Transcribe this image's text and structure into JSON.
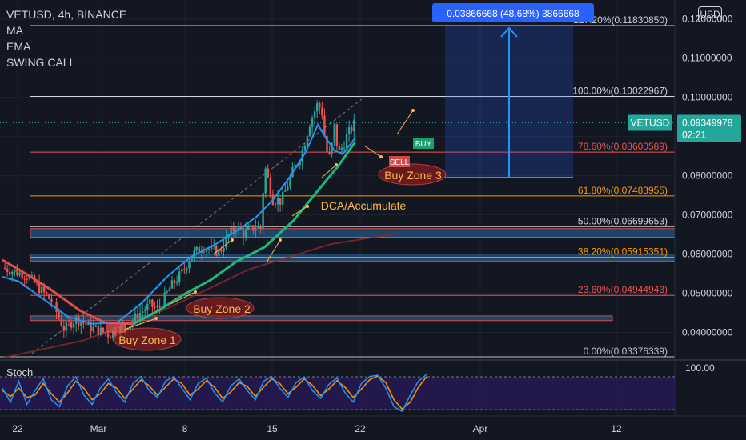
{
  "header": {
    "title": "VETUSD, 4h, BINANCE",
    "indicators": [
      "MA",
      "EMA",
      "SWING CALL"
    ],
    "currency_button": "USD"
  },
  "measure_label": "0.03866668 (48.68%) 3866668",
  "price_tag": {
    "symbol": "VETUSD",
    "price": "0.09349978",
    "countdown": "02:21",
    "color": "#26a69a"
  },
  "chart_data": {
    "type": "candlestick",
    "title": "VETUSD, 4h, BINANCE",
    "y_ticks": [
      "0.04000000",
      "0.05000000",
      "0.06000000",
      "0.07000000",
      "0.08000000",
      "0.09000000",
      "0.10000000",
      "0.11000000",
      "0.12000000"
    ],
    "ylim": [
      0.032,
      0.125
    ],
    "x_ticks": [
      "22",
      "Mar",
      "8",
      "15",
      "22",
      "Apr",
      "12"
    ],
    "close_path": [
      [
        0,
        0.0565
      ],
      [
        6,
        0.0545
      ],
      [
        12,
        0.048
      ],
      [
        15,
        0.041
      ],
      [
        18,
        0.0435
      ],
      [
        22,
        0.041
      ],
      [
        26,
        0.0395
      ],
      [
        28,
        0.0405
      ],
      [
        31,
        0.042
      ],
      [
        33,
        0.0445
      ],
      [
        36,
        0.047
      ],
      [
        38,
        0.0458
      ],
      [
        41,
        0.0515
      ],
      [
        44,
        0.0555
      ],
      [
        46,
        0.0595
      ],
      [
        49,
        0.062
      ],
      [
        51,
        0.061
      ],
      [
        53,
        0.0605
      ],
      [
        55,
        0.0645
      ],
      [
        57,
        0.067
      ],
      [
        59,
        0.0652
      ],
      [
        62,
        0.0672
      ],
      [
        63,
        0.0665
      ],
      [
        64,
        0.0825
      ],
      [
        66,
        0.074
      ],
      [
        68,
        0.0735
      ],
      [
        69,
        0.076
      ],
      [
        71,
        0.0815
      ],
      [
        73,
        0.0855
      ],
      [
        75,
        0.0935
      ],
      [
        77,
        0.0985
      ],
      [
        78,
        0.096
      ],
      [
        79,
        0.0865
      ],
      [
        80,
        0.0845
      ],
      [
        81,
        0.0925
      ],
      [
        82,
        0.0855
      ],
      [
        83,
        0.0875
      ],
      [
        84,
        0.09
      ],
      [
        86,
        0.0935
      ]
    ],
    "ma_path": [
      [
        0,
        0.0585
      ],
      [
        6,
        0.0548
      ],
      [
        12,
        0.0508
      ],
      [
        19,
        0.0455
      ],
      [
        25,
        0.0425
      ],
      [
        32,
        0.0422
      ],
      [
        38,
        0.0455
      ],
      [
        44,
        0.0495
      ],
      [
        51,
        0.0535
      ],
      [
        57,
        0.058
      ],
      [
        64,
        0.0618
      ],
      [
        71,
        0.0685
      ],
      [
        78,
        0.0775
      ],
      [
        82,
        0.0825
      ],
      [
        86,
        0.0885
      ]
    ],
    "ema_path": [
      [
        0,
        0.0542
      ],
      [
        4,
        0.053
      ],
      [
        10,
        0.0485
      ],
      [
        16,
        0.044
      ],
      [
        22,
        0.0422
      ],
      [
        28,
        0.0425
      ],
      [
        34,
        0.0475
      ],
      [
        40,
        0.054
      ],
      [
        46,
        0.0593
      ],
      [
        52,
        0.0625
      ],
      [
        58,
        0.0665
      ],
      [
        62,
        0.0695
      ],
      [
        66,
        0.0738
      ],
      [
        70,
        0.0795
      ],
      [
        74,
        0.086
      ],
      [
        77,
        0.093
      ],
      [
        79,
        0.0895
      ],
      [
        81,
        0.0865
      ],
      [
        83,
        0.0855
      ],
      [
        86,
        0.0895
      ]
    ],
    "slow_ma_path": [
      [
        0,
        0.0335
      ],
      [
        20,
        0.038
      ],
      [
        40,
        0.046
      ],
      [
        60,
        0.056
      ],
      [
        80,
        0.0625
      ],
      [
        96,
        0.0652
      ]
    ],
    "fib_levels": [
      {
        "label": "0.00%(0.03376339)",
        "price": 0.03376339,
        "color": "#c2c2c2"
      },
      {
        "label": "23.60%(0.04944943)",
        "price": 0.04944943,
        "color": "#ef5350"
      },
      {
        "label": "38.20%(0.05915351)",
        "price": 0.05915351,
        "color": "#ff9800"
      },
      {
        "label": "50.00%(0.06699653)",
        "price": 0.06699653,
        "color": "#d1d4dc"
      },
      {
        "label": "61.80%(0.07483955)",
        "price": 0.07483955,
        "color": "#ff9800"
      },
      {
        "label": "78.60%(0.08600589)",
        "price": 0.08600589,
        "color": "#ef5350"
      },
      {
        "label": "100.00%(0.10022967)",
        "price": 0.10022967,
        "color": "#d1d4dc"
      },
      {
        "label": "127.20%(0.11830850)",
        "price": 0.1183085,
        "color": "#d1d4dc"
      }
    ],
    "zones": [
      {
        "top": 0.0665,
        "bottom": 0.0643
      },
      {
        "top": 0.06,
        "bottom": 0.0582
      },
      {
        "top": 0.0442,
        "bottom": 0.043
      }
    ],
    "annotations": {
      "buy_zone_1": "Buy Zone 1",
      "buy_zone_2": "Buy Zone 2",
      "buy_zone_3": "Buy Zone 3",
      "dca": "DCA/Accumulate",
      "buy_tag": "BUY",
      "sell_tag": "SELL"
    },
    "stoch": {
      "label": "Stoch",
      "y_tick": "100.00",
      "k": [
        60,
        30,
        75,
        25,
        55,
        80,
        35,
        20,
        65,
        85,
        45,
        25,
        60,
        80,
        50,
        30,
        70,
        85,
        55,
        40,
        75,
        85,
        60,
        35,
        70,
        82,
        50,
        30,
        65,
        80,
        55,
        35,
        75,
        85,
        60,
        40,
        72,
        84,
        55,
        38,
        68,
        82,
        50,
        30,
        70,
        85,
        88,
        60,
        20,
        10,
        45,
        75,
        90
      ],
      "d": [
        55,
        42,
        60,
        40,
        45,
        70,
        48,
        30,
        50,
        75,
        60,
        35,
        48,
        70,
        60,
        38,
        58,
        78,
        65,
        45,
        62,
        80,
        70,
        45,
        58,
        76,
        62,
        38,
        52,
        72,
        64,
        42,
        62,
        80,
        70,
        48,
        62,
        80,
        66,
        44,
        58,
        76,
        62,
        40,
        58,
        78,
        86,
        72,
        35,
        15,
        30,
        62,
        85
      ]
    }
  }
}
